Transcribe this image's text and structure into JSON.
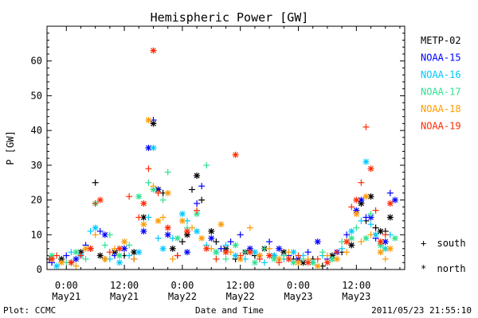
{
  "chart_data": {
    "type": "scatter",
    "title": "Hemispheric Power [GW]",
    "ylabel": "P [GW]",
    "xlabel": "Date and Time",
    "ylim": [
      0,
      70
    ],
    "yticks": [
      0,
      10,
      20,
      30,
      40,
      50,
      60
    ],
    "xlim": [
      -4,
      70
    ],
    "x_units": "hours from 2011-05-21 00:00",
    "xticks": [
      {
        "x": 0,
        "time": "0:00",
        "date": "May21"
      },
      {
        "x": 12,
        "time": "12:00",
        "date": "May21"
      },
      {
        "x": 24,
        "time": "0:00",
        "date": "May22"
      },
      {
        "x": 36,
        "time": "12:00",
        "date": "May22"
      },
      {
        "x": 48,
        "time": "0:00",
        "date": "May23"
      },
      {
        "x": 60,
        "time": "12:00",
        "date": "May23"
      }
    ],
    "markers": {
      "south": "+",
      "north": "*"
    },
    "series": [
      {
        "name": "METP-02",
        "color": "#000000",
        "points": [
          [
            -3.5,
            3,
            "+"
          ],
          [
            -1,
            3,
            "*"
          ],
          [
            1,
            2,
            "+"
          ],
          [
            3,
            5,
            "*"
          ],
          [
            5,
            6,
            "+"
          ],
          [
            6,
            25,
            "+"
          ],
          [
            7,
            4,
            "*"
          ],
          [
            8,
            3,
            "+"
          ],
          [
            10,
            5,
            "*"
          ],
          [
            12,
            4,
            "+"
          ],
          [
            14,
            5,
            "*"
          ],
          [
            16,
            15,
            "*"
          ],
          [
            18,
            42,
            "*"
          ],
          [
            19,
            23,
            "*"
          ],
          [
            20,
            22,
            "+"
          ],
          [
            22,
            6,
            "*"
          ],
          [
            24,
            8,
            "+"
          ],
          [
            25,
            10,
            "*"
          ],
          [
            26,
            23,
            "+"
          ],
          [
            27,
            27,
            "*"
          ],
          [
            28,
            20,
            "+"
          ],
          [
            30,
            11,
            "*"
          ],
          [
            31,
            8,
            "+"
          ],
          [
            33,
            6,
            "*"
          ],
          [
            35,
            3,
            "+"
          ],
          [
            37,
            5,
            "*"
          ],
          [
            39,
            4,
            "+"
          ],
          [
            41,
            6,
            "*"
          ],
          [
            43,
            4,
            "+"
          ],
          [
            45,
            5,
            "*"
          ],
          [
            47,
            3,
            "+"
          ],
          [
            49,
            2,
            "*"
          ],
          [
            51,
            3,
            "+"
          ],
          [
            53,
            1,
            "+"
          ],
          [
            55,
            4,
            "*"
          ],
          [
            57,
            5,
            "+"
          ],
          [
            59,
            7,
            "*"
          ],
          [
            61,
            19,
            "*"
          ],
          [
            62,
            14,
            "+"
          ],
          [
            63,
            21,
            "*"
          ],
          [
            64,
            12,
            "+"
          ],
          [
            65,
            11,
            "*"
          ],
          [
            66,
            11,
            "+"
          ],
          [
            67,
            15,
            "*"
          ]
        ]
      },
      {
        "name": "NOAA-15",
        "color": "#0000ff",
        "points": [
          [
            -3,
            2,
            "+"
          ],
          [
            0,
            4,
            "+"
          ],
          [
            2,
            3,
            "*"
          ],
          [
            4,
            7,
            "+"
          ],
          [
            7,
            11,
            "+"
          ],
          [
            8,
            10,
            "*"
          ],
          [
            10,
            4,
            "+"
          ],
          [
            12,
            6,
            "*"
          ],
          [
            14,
            3,
            "+"
          ],
          [
            16,
            11,
            "*"
          ],
          [
            17,
            35,
            "*"
          ],
          [
            18,
            43,
            "+"
          ],
          [
            19,
            23,
            "+"
          ],
          [
            21,
            10,
            "*"
          ],
          [
            23,
            4,
            "+"
          ],
          [
            25,
            5,
            "*"
          ],
          [
            27,
            19,
            "+"
          ],
          [
            28,
            24,
            "+"
          ],
          [
            30,
            9,
            "*"
          ],
          [
            32,
            6,
            "+"
          ],
          [
            34,
            8,
            "+"
          ],
          [
            36,
            10,
            "+"
          ],
          [
            38,
            6,
            "*"
          ],
          [
            40,
            4,
            "+"
          ],
          [
            42,
            8,
            "+"
          ],
          [
            44,
            6,
            "*"
          ],
          [
            46,
            4,
            "+"
          ],
          [
            48,
            3,
            "*"
          ],
          [
            50,
            5,
            "+"
          ],
          [
            52,
            8,
            "*"
          ],
          [
            54,
            3,
            "+"
          ],
          [
            56,
            5,
            "*"
          ],
          [
            58,
            10,
            "+"
          ],
          [
            60,
            17,
            "*"
          ],
          [
            61,
            20,
            "*"
          ],
          [
            62,
            15,
            "+"
          ],
          [
            63,
            15,
            "*"
          ],
          [
            64,
            9,
            "+"
          ],
          [
            66,
            8,
            "*"
          ],
          [
            67,
            22,
            "+"
          ],
          [
            68,
            20,
            "*"
          ]
        ]
      },
      {
        "name": "NOAA-16",
        "color": "#00c8ff",
        "points": [
          [
            -2,
            1,
            "*"
          ],
          [
            1,
            5,
            "+"
          ],
          [
            3,
            4,
            "*"
          ],
          [
            5,
            11,
            "+"
          ],
          [
            6,
            12,
            "*"
          ],
          [
            9,
            3,
            "+"
          ],
          [
            11,
            2,
            "*"
          ],
          [
            13,
            4,
            "+"
          ],
          [
            15,
            5,
            "*"
          ],
          [
            17,
            15,
            "+"
          ],
          [
            18,
            35,
            "*"
          ],
          [
            19,
            9,
            "+"
          ],
          [
            20,
            6,
            "*"
          ],
          [
            22,
            9,
            "+"
          ],
          [
            24,
            16,
            "*"
          ],
          [
            25,
            14,
            "+"
          ],
          [
            27,
            11,
            "*"
          ],
          [
            29,
            7,
            "+"
          ],
          [
            31,
            5,
            "*"
          ],
          [
            33,
            7,
            "+"
          ],
          [
            35,
            4,
            "*"
          ],
          [
            37,
            3,
            "+"
          ],
          [
            39,
            5,
            "*"
          ],
          [
            41,
            2,
            "+"
          ],
          [
            43,
            4,
            "*"
          ],
          [
            45,
            3,
            "+"
          ],
          [
            47,
            5,
            "*"
          ],
          [
            49,
            4,
            "+"
          ],
          [
            51,
            2,
            "*"
          ],
          [
            53,
            4,
            "+"
          ],
          [
            55,
            3,
            "*"
          ],
          [
            57,
            6,
            "+"
          ],
          [
            59,
            11,
            "*"
          ],
          [
            61,
            14,
            "+"
          ],
          [
            62,
            31,
            "*"
          ],
          [
            63,
            13,
            "+"
          ],
          [
            64,
            10,
            "*"
          ],
          [
            65,
            7,
            "+"
          ],
          [
            66,
            6,
            "*"
          ],
          [
            67,
            10,
            "+"
          ]
        ]
      },
      {
        "name": "NOAA-17",
        "color": "#30e090",
        "points": [
          [
            -3,
            4,
            "*"
          ],
          [
            0,
            2,
            "+"
          ],
          [
            2,
            5,
            "*"
          ],
          [
            4,
            3,
            "+"
          ],
          [
            6,
            19,
            "*"
          ],
          [
            8,
            7,
            "+"
          ],
          [
            9,
            10,
            "+"
          ],
          [
            11,
            4,
            "*"
          ],
          [
            13,
            7,
            "+"
          ],
          [
            15,
            21,
            "*"
          ],
          [
            17,
            25,
            "+"
          ],
          [
            18,
            23,
            "*"
          ],
          [
            20,
            20,
            "+"
          ],
          [
            21,
            28,
            "+"
          ],
          [
            23,
            9,
            "*"
          ],
          [
            25,
            12,
            "+"
          ],
          [
            27,
            16,
            "*"
          ],
          [
            29,
            30,
            "+"
          ],
          [
            31,
            5,
            "*"
          ],
          [
            33,
            3,
            "+"
          ],
          [
            35,
            7,
            "*"
          ],
          [
            37,
            5,
            "+"
          ],
          [
            39,
            2,
            "*"
          ],
          [
            41,
            6,
            "+"
          ],
          [
            43,
            3,
            "*"
          ],
          [
            45,
            4,
            "+"
          ],
          [
            47,
            2,
            "*"
          ],
          [
            49,
            3,
            "+"
          ],
          [
            51,
            2,
            "*"
          ],
          [
            53,
            5,
            "+"
          ],
          [
            55,
            3,
            "*"
          ],
          [
            57,
            8,
            "+"
          ],
          [
            59,
            9,
            "*"
          ],
          [
            60,
            12,
            "+"
          ],
          [
            62,
            9,
            "*"
          ],
          [
            63,
            16,
            "+"
          ],
          [
            65,
            7,
            "*"
          ],
          [
            66,
            6,
            "+"
          ],
          [
            68,
            9,
            "*"
          ]
        ]
      },
      {
        "name": "NOAA-18",
        "color": "#ff9a00",
        "points": [
          [
            -3,
            3,
            "+"
          ],
          [
            -1,
            2,
            "*"
          ],
          [
            2,
            1,
            "+"
          ],
          [
            4,
            6,
            "*"
          ],
          [
            6,
            10,
            "+"
          ],
          [
            8,
            3,
            "*"
          ],
          [
            10,
            6,
            "+"
          ],
          [
            12,
            8,
            "*"
          ],
          [
            14,
            3,
            "+"
          ],
          [
            16,
            13,
            "*"
          ],
          [
            17,
            43,
            "*"
          ],
          [
            18,
            24,
            "+"
          ],
          [
            19,
            14,
            "*"
          ],
          [
            20,
            15,
            "+"
          ],
          [
            21,
            22,
            "*"
          ],
          [
            22,
            3,
            "+"
          ],
          [
            24,
            14,
            "*"
          ],
          [
            26,
            12,
            "+"
          ],
          [
            28,
            9,
            "*"
          ],
          [
            30,
            6,
            "+"
          ],
          [
            32,
            13,
            "*"
          ],
          [
            34,
            5,
            "+"
          ],
          [
            36,
            3,
            "*"
          ],
          [
            38,
            12,
            "+"
          ],
          [
            40,
            4,
            "*"
          ],
          [
            42,
            6,
            "+"
          ],
          [
            44,
            3,
            "*"
          ],
          [
            46,
            5,
            "+"
          ],
          [
            48,
            2,
            "*"
          ],
          [
            50,
            3,
            "+"
          ],
          [
            52,
            1,
            "*"
          ],
          [
            54,
            4,
            "+"
          ],
          [
            56,
            3,
            "*"
          ],
          [
            58,
            5,
            "+"
          ],
          [
            60,
            16,
            "*"
          ],
          [
            61,
            8,
            "+"
          ],
          [
            62,
            21,
            "*"
          ],
          [
            63,
            10,
            "+"
          ],
          [
            65,
            5,
            "*"
          ],
          [
            66,
            3,
            "+"
          ],
          [
            67,
            6,
            "*"
          ]
        ]
      },
      {
        "name": "NOAA-19",
        "color": "#ff2a00",
        "points": [
          [
            -3,
            3,
            "*"
          ],
          [
            -2,
            4,
            "+"
          ],
          [
            1,
            2,
            "*"
          ],
          [
            3,
            4,
            "+"
          ],
          [
            5,
            6,
            "*"
          ],
          [
            6,
            19,
            "+"
          ],
          [
            7,
            20,
            "*"
          ],
          [
            9,
            5,
            "+"
          ],
          [
            11,
            6,
            "*"
          ],
          [
            13,
            21,
            "+"
          ],
          [
            15,
            15,
            "+"
          ],
          [
            16,
            19,
            "*"
          ],
          [
            17,
            29,
            "+"
          ],
          [
            18,
            63,
            "*"
          ],
          [
            19,
            22,
            "+"
          ],
          [
            21,
            12,
            "*"
          ],
          [
            23,
            4,
            "+"
          ],
          [
            25,
            11,
            "*"
          ],
          [
            27,
            17,
            "+"
          ],
          [
            29,
            6,
            "*"
          ],
          [
            31,
            3,
            "+"
          ],
          [
            33,
            5,
            "*"
          ],
          [
            35,
            33,
            "*"
          ],
          [
            36,
            4,
            "+"
          ],
          [
            38,
            5,
            "*"
          ],
          [
            40,
            3,
            "+"
          ],
          [
            42,
            4,
            "*"
          ],
          [
            44,
            2,
            "+"
          ],
          [
            46,
            3,
            "*"
          ],
          [
            48,
            4,
            "+"
          ],
          [
            50,
            2,
            "*"
          ],
          [
            52,
            3,
            "+"
          ],
          [
            54,
            2,
            "*"
          ],
          [
            56,
            5,
            "+"
          ],
          [
            58,
            8,
            "*"
          ],
          [
            59,
            18,
            "+"
          ],
          [
            60,
            20,
            "*"
          ],
          [
            61,
            25,
            "+"
          ],
          [
            62,
            41,
            "+"
          ],
          [
            63,
            29,
            "*"
          ],
          [
            64,
            17,
            "+"
          ],
          [
            65,
            8,
            "*"
          ],
          [
            66,
            10,
            "+"
          ],
          [
            67,
            19,
            "*"
          ]
        ]
      }
    ],
    "marker_legend": [
      {
        "symbol": "+",
        "label": "south"
      },
      {
        "symbol": "*",
        "label": "north"
      }
    ]
  },
  "footer": {
    "left": "Plot: CCMC",
    "center": "Date and Time",
    "right": "2011/05/23 21:55:10"
  }
}
